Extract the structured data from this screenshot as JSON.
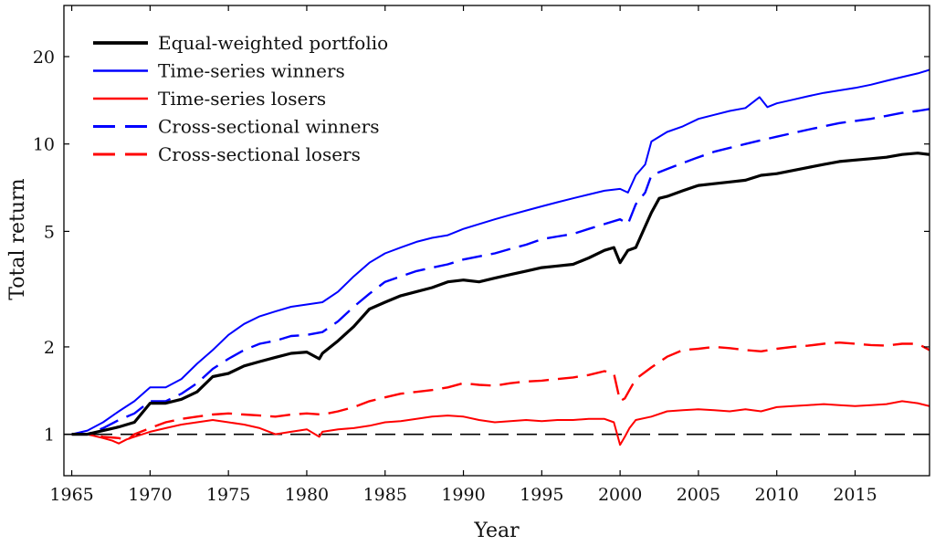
{
  "chart_data": {
    "type": "line",
    "xlabel": "Year",
    "ylabel": "Total return",
    "yscale": "log",
    "xlim": [
      1964.5,
      2019.75
    ],
    "ylim": [
      0.72,
      30
    ],
    "xticks": [
      1965,
      1970,
      1975,
      1980,
      1985,
      1990,
      1995,
      2000,
      2005,
      2010,
      2015
    ],
    "yticks": [
      1,
      2,
      5,
      10,
      20
    ],
    "reference_line": {
      "y": 1,
      "style": "dashed",
      "color": "#000000"
    },
    "legend_position": "top-left",
    "series": [
      {
        "name": "Equal-weighted portfolio",
        "color": "#000000",
        "style": "solid",
        "width": 3.2,
        "x": [
          1965,
          1966,
          1967,
          1968,
          1969,
          1970,
          1971,
          1972,
          1973,
          1974,
          1975,
          1976,
          1977,
          1978,
          1979,
          1980,
          1980.8,
          1981,
          1982,
          1983,
          1984,
          1985,
          1986,
          1987,
          1988,
          1989,
          1990,
          1991,
          1992,
          1993,
          1994,
          1995,
          1996,
          1997,
          1998,
          1999,
          1999.6,
          2000,
          2000.5,
          2001,
          2001.6,
          2002,
          2002.5,
          2003,
          2004,
          2005,
          2006,
          2007,
          2008,
          2009,
          2010,
          2011,
          2012,
          2013,
          2014,
          2015,
          2016,
          2017,
          2018,
          2019,
          2019.75
        ],
        "values": [
          1.0,
          1.0,
          1.03,
          1.06,
          1.1,
          1.28,
          1.28,
          1.32,
          1.4,
          1.58,
          1.62,
          1.72,
          1.78,
          1.84,
          1.9,
          1.92,
          1.82,
          1.9,
          2.1,
          2.35,
          2.7,
          2.85,
          3.0,
          3.1,
          3.2,
          3.35,
          3.4,
          3.35,
          3.45,
          3.55,
          3.65,
          3.75,
          3.8,
          3.85,
          4.05,
          4.3,
          4.4,
          3.9,
          4.3,
          4.4,
          5.2,
          5.8,
          6.5,
          6.6,
          6.9,
          7.2,
          7.3,
          7.4,
          7.5,
          7.8,
          7.9,
          8.1,
          8.3,
          8.5,
          8.7,
          8.8,
          8.9,
          9.0,
          9.2,
          9.3,
          9.2
        ]
      },
      {
        "name": "Time-series winners",
        "color": "#0000ff",
        "style": "solid",
        "width": 2.0,
        "x": [
          1965,
          1966,
          1967,
          1968,
          1969,
          1970,
          1971,
          1972,
          1973,
          1974,
          1975,
          1976,
          1977,
          1978,
          1979,
          1980,
          1981,
          1982,
          1983,
          1984,
          1985,
          1986,
          1987,
          1988,
          1989,
          1990,
          1991,
          1992,
          1993,
          1994,
          1995,
          1996,
          1997,
          1998,
          1999,
          2000,
          2000.5,
          2001,
          2001.6,
          2002,
          2003,
          2004,
          2005,
          2006,
          2007,
          2008,
          2008.9,
          2009.4,
          2010,
          2011,
          2012,
          2013,
          2014,
          2015,
          2016,
          2017,
          2018,
          2019,
          2019.75
        ],
        "values": [
          1.0,
          1.03,
          1.1,
          1.2,
          1.3,
          1.45,
          1.45,
          1.55,
          1.75,
          1.95,
          2.2,
          2.4,
          2.55,
          2.65,
          2.75,
          2.8,
          2.85,
          3.1,
          3.5,
          3.9,
          4.2,
          4.4,
          4.6,
          4.75,
          4.85,
          5.1,
          5.3,
          5.5,
          5.7,
          5.9,
          6.1,
          6.3,
          6.5,
          6.7,
          6.9,
          7.0,
          6.8,
          7.8,
          8.5,
          10.2,
          11.0,
          11.5,
          12.2,
          12.6,
          13.0,
          13.3,
          14.5,
          13.4,
          13.8,
          14.2,
          14.6,
          15.0,
          15.3,
          15.6,
          16.0,
          16.5,
          17.0,
          17.5,
          18.0
        ]
      },
      {
        "name": "Time-series losers",
        "color": "#ff0000",
        "style": "solid",
        "width": 2.0,
        "x": [
          1965,
          1966,
          1967,
          1967.6,
          1968,
          1968.5,
          1969,
          1970,
          1971,
          1972,
          1973,
          1974,
          1975,
          1976,
          1977,
          1978,
          1979,
          1980,
          1980.8,
          1981,
          1982,
          1983,
          1984,
          1985,
          1986,
          1987,
          1988,
          1989,
          1990,
          1991,
          1992,
          1993,
          1994,
          1995,
          1996,
          1997,
          1998,
          1999,
          1999.6,
          2000,
          2000.3,
          2000.6,
          2001,
          2002,
          2003,
          2004,
          2005,
          2006,
          2007,
          2008,
          2009,
          2010,
          2011,
          2012,
          2013,
          2014,
          2015,
          2016,
          2017,
          2018,
          2019,
          2019.75
        ],
        "values": [
          1.0,
          1.0,
          0.97,
          0.95,
          0.93,
          0.96,
          0.98,
          1.02,
          1.05,
          1.08,
          1.1,
          1.12,
          1.1,
          1.08,
          1.05,
          1.0,
          1.02,
          1.04,
          0.98,
          1.02,
          1.04,
          1.05,
          1.07,
          1.1,
          1.11,
          1.13,
          1.15,
          1.16,
          1.15,
          1.12,
          1.1,
          1.11,
          1.12,
          1.11,
          1.12,
          1.12,
          1.13,
          1.13,
          1.1,
          0.92,
          0.98,
          1.05,
          1.12,
          1.15,
          1.2,
          1.21,
          1.22,
          1.21,
          1.2,
          1.22,
          1.2,
          1.24,
          1.25,
          1.26,
          1.27,
          1.26,
          1.25,
          1.26,
          1.27,
          1.3,
          1.28,
          1.25
        ]
      },
      {
        "name": "Cross-sectional winners",
        "color": "#0000ff",
        "style": "dashed",
        "width": 2.4,
        "x": [
          1965,
          1966,
          1967,
          1968,
          1969,
          1970,
          1971,
          1972,
          1973,
          1974,
          1975,
          1976,
          1977,
          1978,
          1979,
          1980,
          1981,
          1982,
          1983,
          1984,
          1985,
          1986,
          1987,
          1988,
          1989,
          1990,
          1991,
          1992,
          1993,
          1994,
          1995,
          1996,
          1997,
          1998,
          1999,
          2000,
          2000.5,
          2001,
          2001.6,
          2002,
          2003,
          2004,
          2005,
          2006,
          2007,
          2008,
          2009,
          2010,
          2011,
          2012,
          2013,
          2014,
          2015,
          2016,
          2017,
          2018,
          2019,
          2019.75
        ],
        "values": [
          1.0,
          1.0,
          1.05,
          1.12,
          1.18,
          1.3,
          1.3,
          1.38,
          1.5,
          1.68,
          1.82,
          1.95,
          2.05,
          2.1,
          2.18,
          2.2,
          2.25,
          2.45,
          2.75,
          3.05,
          3.35,
          3.5,
          3.65,
          3.75,
          3.85,
          4.0,
          4.1,
          4.2,
          4.35,
          4.5,
          4.7,
          4.8,
          4.9,
          5.1,
          5.3,
          5.5,
          5.3,
          6.2,
          6.8,
          7.8,
          8.2,
          8.6,
          9.0,
          9.4,
          9.7,
          10.0,
          10.3,
          10.6,
          10.9,
          11.2,
          11.5,
          11.8,
          12.0,
          12.2,
          12.5,
          12.8,
          13.0,
          13.2
        ]
      },
      {
        "name": "Cross-sectional losers",
        "color": "#ff0000",
        "style": "dashed",
        "width": 2.4,
        "x": [
          1965,
          1966,
          1967,
          1968,
          1968.5,
          1969,
          1970,
          1971,
          1972,
          1973,
          1974,
          1975,
          1976,
          1977,
          1978,
          1979,
          1980,
          1981,
          1982,
          1983,
          1984,
          1985,
          1986,
          1987,
          1988,
          1989,
          1990,
          1991,
          1992,
          1993,
          1994,
          1995,
          1996,
          1997,
          1998,
          1999,
          1999.6,
          2000,
          2000.3,
          2000.6,
          2001,
          2002,
          2003,
          2004,
          2005,
          2006,
          2007,
          2008,
          2009,
          2010,
          2011,
          2012,
          2013,
          2014,
          2015,
          2016,
          2017,
          2018,
          2019,
          2019.75
        ],
        "values": [
          1.0,
          1.0,
          0.98,
          0.97,
          0.95,
          1.0,
          1.05,
          1.1,
          1.13,
          1.15,
          1.17,
          1.18,
          1.17,
          1.16,
          1.15,
          1.17,
          1.18,
          1.17,
          1.2,
          1.24,
          1.3,
          1.34,
          1.38,
          1.4,
          1.42,
          1.45,
          1.5,
          1.48,
          1.47,
          1.5,
          1.52,
          1.53,
          1.55,
          1.57,
          1.6,
          1.65,
          1.62,
          1.3,
          1.33,
          1.42,
          1.55,
          1.7,
          1.85,
          1.95,
          1.97,
          2.0,
          1.98,
          1.95,
          1.93,
          1.97,
          2.0,
          2.02,
          2.05,
          2.07,
          2.05,
          2.03,
          2.02,
          2.05,
          2.05,
          1.95
        ]
      }
    ]
  }
}
